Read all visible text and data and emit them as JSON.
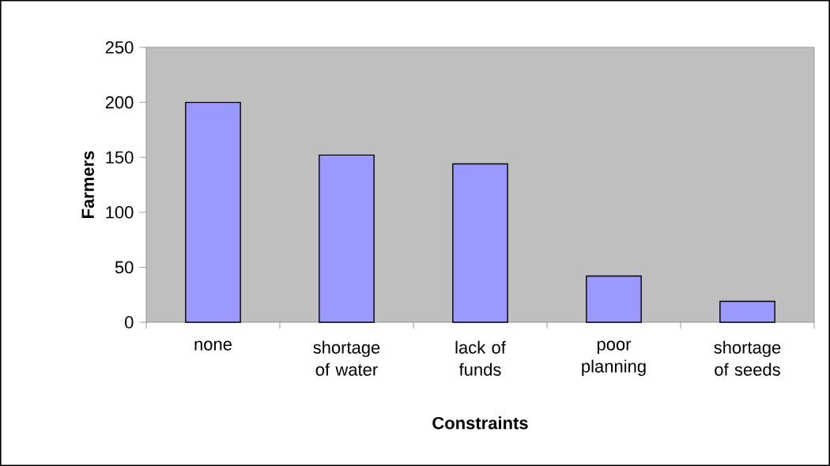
{
  "chart_data": {
    "type": "bar",
    "xlabel": "Constraints",
    "ylabel": "Farmers",
    "categories": [
      "none",
      "shortage of water",
      "lack of funds",
      "poor planning",
      "shortage of seeds"
    ],
    "values": [
      200,
      152,
      144,
      42,
      19
    ],
    "color": "#9999ff",
    "ylim": [
      0,
      250
    ],
    "yticks": [
      0,
      50,
      100,
      150,
      200,
      250
    ]
  }
}
